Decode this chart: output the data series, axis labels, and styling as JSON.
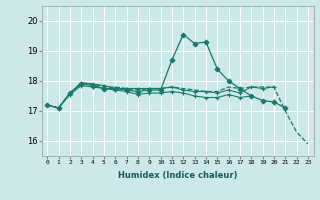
{
  "x": [
    0,
    1,
    2,
    3,
    4,
    5,
    6,
    7,
    8,
    9,
    10,
    11,
    12,
    13,
    14,
    15,
    16,
    17,
    18,
    19,
    20,
    21,
    22,
    23
  ],
  "line1": [
    17.2,
    17.1,
    17.6,
    17.9,
    17.9,
    17.8,
    17.8,
    17.75,
    17.7,
    17.75,
    17.75,
    17.8,
    17.75,
    17.7,
    17.65,
    17.65,
    17.8,
    17.75,
    17.8,
    17.8,
    17.8,
    17.0,
    16.3,
    15.9
  ],
  "line2": [
    17.2,
    17.1,
    17.6,
    17.9,
    17.85,
    17.75,
    17.75,
    17.7,
    17.65,
    17.7,
    17.7,
    18.7,
    19.55,
    19.25,
    19.3,
    18.4,
    18.0,
    17.75,
    17.5,
    17.35,
    17.3,
    17.1,
    null,
    null
  ],
  "line3": [
    17.2,
    17.1,
    17.6,
    17.95,
    17.9,
    17.85,
    17.75,
    17.75,
    17.75,
    17.75,
    17.75,
    17.8,
    17.7,
    17.65,
    17.65,
    17.6,
    17.7,
    17.6,
    17.8,
    17.75,
    17.8,
    null,
    null,
    null
  ],
  "line4": [
    17.2,
    17.1,
    17.55,
    17.85,
    17.8,
    17.75,
    17.7,
    17.65,
    17.55,
    17.6,
    17.6,
    17.65,
    17.6,
    17.5,
    17.45,
    17.45,
    17.55,
    17.45,
    17.5,
    null,
    null,
    null,
    null,
    null
  ],
  "color": "#1a7a6a",
  "bg_color": "#cce8e8",
  "grid_color": "#ffffff",
  "xlabel": "Humidex (Indice chaleur)",
  "ylim": [
    15.5,
    20.5
  ],
  "xlim": [
    -0.5,
    23.5
  ],
  "yticks": [
    16,
    17,
    18,
    19,
    20
  ],
  "xticks": [
    0,
    1,
    2,
    3,
    4,
    5,
    6,
    7,
    8,
    9,
    10,
    11,
    12,
    13,
    14,
    15,
    16,
    17,
    18,
    19,
    20,
    21,
    22,
    23
  ],
  "xtick_labels": [
    "0",
    "1",
    "2",
    "3",
    "4",
    "5",
    "6",
    "7",
    "8",
    "9",
    "10",
    "11",
    "12",
    "13",
    "14",
    "15",
    "16",
    "17",
    "18",
    "19",
    "20",
    "21",
    "22",
    "23"
  ]
}
